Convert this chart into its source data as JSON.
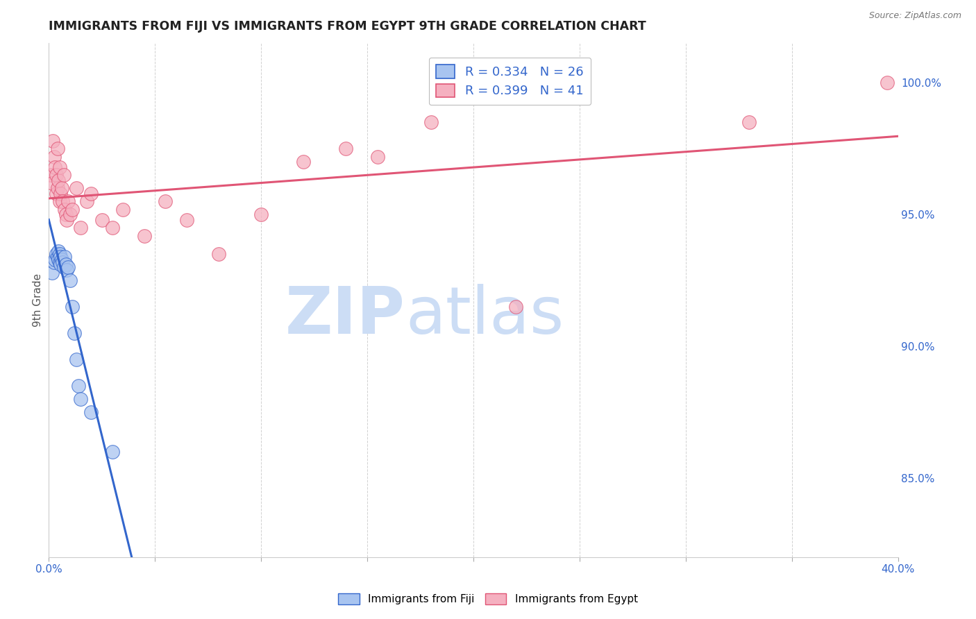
{
  "title": "IMMIGRANTS FROM FIJI VS IMMIGRANTS FROM EGYPT 9TH GRADE CORRELATION CHART",
  "source": "Source: ZipAtlas.com",
  "ylabel": "9th Grade",
  "x_min": 0.0,
  "x_max": 40.0,
  "y_min": 82.0,
  "y_max": 101.5,
  "y_ticks": [
    85.0,
    90.0,
    95.0,
    100.0
  ],
  "x_ticks": [
    0.0,
    5.0,
    10.0,
    15.0,
    20.0,
    25.0,
    30.0,
    35.0,
    40.0
  ],
  "fiji_color": "#a8c4f0",
  "egypt_color": "#f5b0c0",
  "fiji_line_color": "#3366cc",
  "egypt_line_color": "#e05575",
  "fiji_R": 0.334,
  "fiji_N": 26,
  "egypt_R": 0.399,
  "egypt_N": 41,
  "fiji_points_x": [
    0.15,
    0.25,
    0.3,
    0.35,
    0.4,
    0.45,
    0.45,
    0.5,
    0.5,
    0.55,
    0.55,
    0.6,
    0.65,
    0.7,
    0.75,
    0.8,
    0.85,
    0.9,
    1.0,
    1.1,
    1.2,
    1.3,
    1.4,
    1.5,
    2.0,
    3.0
  ],
  "fiji_points_y": [
    92.8,
    93.2,
    93.3,
    93.5,
    93.4,
    93.6,
    93.3,
    93.5,
    93.2,
    93.4,
    93.1,
    93.3,
    93.2,
    93.0,
    93.4,
    93.1,
    92.9,
    93.0,
    92.5,
    91.5,
    90.5,
    89.5,
    88.5,
    88.0,
    87.5,
    86.0
  ],
  "egypt_points_x": [
    0.1,
    0.15,
    0.2,
    0.25,
    0.3,
    0.35,
    0.35,
    0.4,
    0.4,
    0.45,
    0.5,
    0.5,
    0.55,
    0.6,
    0.65,
    0.7,
    0.75,
    0.8,
    0.85,
    0.9,
    1.0,
    1.1,
    1.3,
    1.5,
    1.8,
    2.0,
    2.5,
    3.0,
    3.5,
    4.5,
    5.5,
    6.5,
    8.0,
    10.0,
    12.0,
    14.0,
    15.5,
    18.0,
    22.0,
    33.0,
    39.5
  ],
  "egypt_points_y": [
    96.5,
    96.2,
    97.8,
    97.2,
    96.8,
    96.5,
    95.8,
    97.5,
    96.0,
    96.3,
    96.8,
    95.5,
    95.8,
    96.0,
    95.5,
    96.5,
    95.2,
    95.0,
    94.8,
    95.5,
    95.0,
    95.2,
    96.0,
    94.5,
    95.5,
    95.8,
    94.8,
    94.5,
    95.2,
    94.2,
    95.5,
    94.8,
    93.5,
    95.0,
    97.0,
    97.5,
    97.2,
    98.5,
    91.5,
    98.5,
    100.0
  ],
  "background_color": "#ffffff",
  "grid_color": "#cccccc",
  "title_color": "#222222",
  "axis_tick_color": "#3366cc",
  "watermark_zip": "ZIP",
  "watermark_atlas": "atlas",
  "watermark_color": "#ccddf5"
}
